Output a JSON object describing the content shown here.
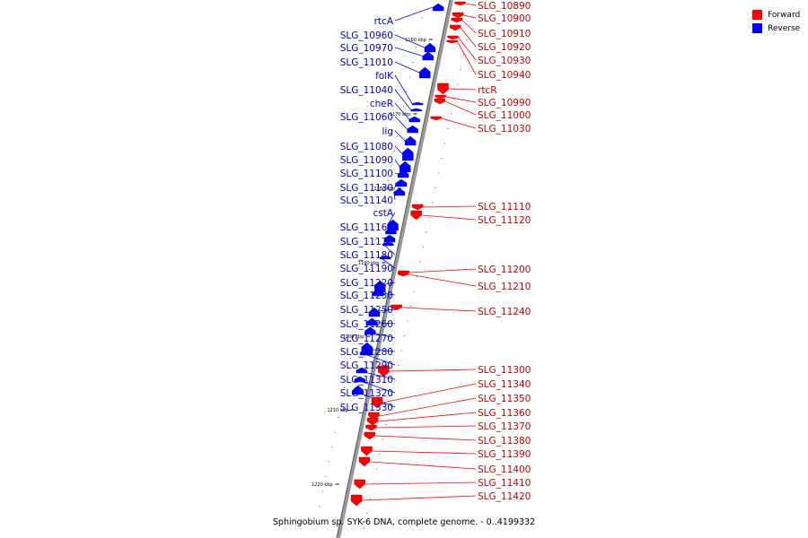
{
  "caption": "Sphingobium sp. SYK-6 DNA, complete genome. - 0..4199332",
  "legend": [
    {
      "label": "Forward",
      "color": "#ff0000"
    },
    {
      "label": "Reverse",
      "color": "#0000ff"
    }
  ],
  "colors": {
    "forward": "#ff0000",
    "reverse": "#0000ff",
    "backbone": "#808080"
  },
  "ticks": [
    "1160 kbp",
    "1170 kbp",
    "1180 kbp",
    "1190 kbp",
    "1200 kbp",
    "1210 kbp",
    "1220 kbp"
  ],
  "reverse_genes": [
    "rtcA",
    "SLG_10960",
    "SLG_10970",
    "SLG_11010",
    "folK",
    "SLG_11040",
    "cheR",
    "SLG_11060",
    "lig",
    "SLG_11080",
    "SLG_11090",
    "SLG_11100",
    "SLG_11130",
    "SLG_11140",
    "cstA",
    "SLG_11160",
    "SLG_11170",
    "SLG_11180",
    "SLG_11190",
    "SLG_11220",
    "SLG_11230",
    "SLG_11250",
    "SLG_11260",
    "SLG_11270",
    "SLG_11280",
    "SLG_11290",
    "SLG_11310",
    "SLG_11320",
    "SLG_11330"
  ],
  "forward_genes": [
    "SLG_10890",
    "SLG_10900",
    "SLG_10910",
    "SLG_10920",
    "SLG_10930",
    "SLG_10940",
    "rtcR",
    "SLG_10990",
    "SLG_11000",
    "SLG_11030",
    "SLG_11110",
    "SLG_11120",
    "SLG_11200",
    "SLG_11210",
    "SLG_11240",
    "SLG_11300",
    "SLG_11340",
    "SLG_11350",
    "SLG_11360",
    "SLG_11370",
    "SLG_11380",
    "SLG_11390",
    "SLG_11400",
    "SLG_11410",
    "SLG_11420"
  ]
}
